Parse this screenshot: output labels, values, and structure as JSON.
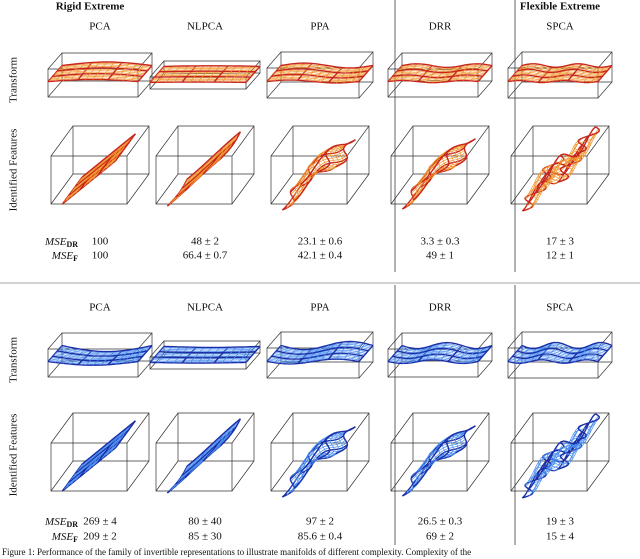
{
  "header": {
    "left": "Rigid Extreme",
    "right": "Flexible Extreme"
  },
  "panels": [
    {
      "columns": [
        "PCA",
        "NLPCA",
        "PPA",
        "DRR",
        "SPCA"
      ],
      "row_labels": [
        "Transform",
        "Identified Features"
      ],
      "metrics": [
        {
          "name": "MSE",
          "sub": "DR",
          "values": [
            "100",
            "48 ± 2",
            "23.1 ± 0.6",
            "3.3 ± 0.3",
            "17 ± 3"
          ]
        },
        {
          "name": "MSE",
          "sub": "F",
          "values": [
            "100",
            "66.4 ± 0.7",
            "42.1 ± 0.4",
            "49 ± 1",
            "12 ± 1"
          ]
        }
      ]
    },
    {
      "columns": [
        "PCA",
        "NLPCA",
        "PPA",
        "DRR",
        "SPCA"
      ],
      "row_labels": [
        "Transform",
        "Identified Features"
      ],
      "metrics": [
        {
          "name": "MSE",
          "sub": "DR",
          "values": [
            "269 ± 4",
            "80 ± 40",
            "97 ± 2",
            "26.5 ± 0.3",
            "19 ± 3"
          ]
        },
        {
          "name": "MSE",
          "sub": "F",
          "values": [
            "209 ± 2",
            "85 ± 30",
            "85.6 ± 0.4",
            "69 ± 2",
            "15 ± 4"
          ]
        }
      ]
    }
  ],
  "caption": "Figure 1: Performance of the family of invertible representations to illustrate manifolds of different complexity. Complexity of the"
}
